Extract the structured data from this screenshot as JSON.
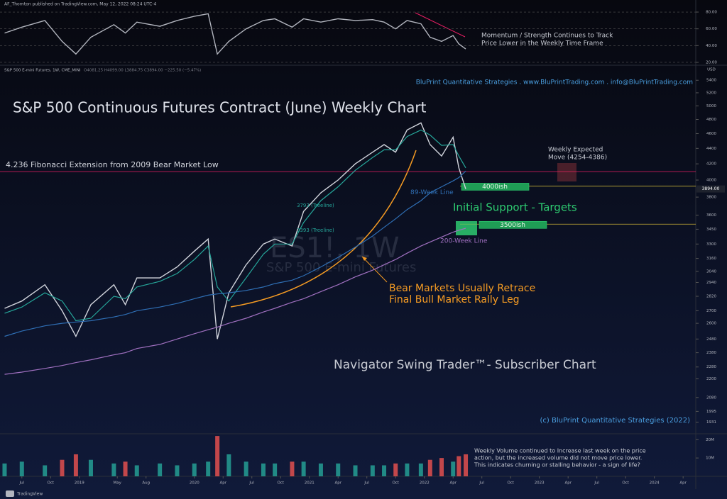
{
  "header": {
    "byline": "AF_Thornton published on TradingView.com, May 12, 2022 08:24 UTC-4",
    "symbol": "S&P 500 E-mini Futures, 1W, CME_MINI",
    "ohlc": "O4081.25 H4099.00 L3884.75 C3894.00 −225.50 (−5.47%)",
    "brand": "TradingView",
    "watermark": "ES1!, 1W",
    "watermark_sub": "S&P 500 E-mini Futures"
  },
  "chart_data": [
    {
      "type": "line",
      "panel": "momentum",
      "x": [
        2018.35,
        2018.5,
        2018.7,
        2018.85,
        2018.97,
        2019.1,
        2019.3,
        2019.4,
        2019.5,
        2019.7,
        2019.85,
        2020.0,
        2020.12,
        2020.2,
        2020.3,
        2020.45,
        2020.6,
        2020.7,
        2020.85,
        2020.95,
        2021.1,
        2021.25,
        2021.4,
        2021.55,
        2021.65,
        2021.75,
        2021.85,
        2021.97,
        2022.05,
        2022.15,
        2022.25,
        2022.3,
        2022.36
      ],
      "xlim": [
        2018.31,
        2024.36
      ],
      "ylim": [
        16.6,
        94.4
      ],
      "yticks": [
        {
          "value": 80,
          "label": "80.00"
        },
        {
          "value": 60,
          "label": "60.00"
        },
        {
          "value": 40,
          "label": "40.00"
        },
        {
          "value": 20,
          "label": "20.00"
        }
      ],
      "grid": true,
      "series": [
        {
          "color": "#b2b5be",
          "values": [
            55,
            62,
            70,
            45,
            30,
            50,
            65,
            55,
            68,
            63,
            70,
            75,
            78,
            30,
            45,
            60,
            70,
            72,
            62,
            72,
            68,
            72,
            70,
            71,
            68,
            60,
            70,
            66,
            50,
            45,
            52,
            42,
            36
          ]
        }
      ],
      "annotation_lines": [
        "Momentum / Strength Continues to Track",
        "Price Lower in the Weekly Time Frame"
      ]
    },
    {
      "type": "line",
      "panel": "price",
      "log": true,
      "ylabel": "USD",
      "x": [
        2018.35,
        2018.5,
        2018.7,
        2018.85,
        2018.97,
        2019.1,
        2019.3,
        2019.4,
        2019.5,
        2019.7,
        2019.85,
        2020.0,
        2020.12,
        2020.2,
        2020.3,
        2020.45,
        2020.6,
        2020.7,
        2020.85,
        2020.95,
        2021.1,
        2021.25,
        2021.4,
        2021.55,
        2021.65,
        2021.75,
        2021.85,
        2021.97,
        2022.05,
        2022.15,
        2022.25,
        2022.3,
        2022.36
      ],
      "xlim": [
        2018.31,
        2024.36
      ],
      "ylim": [
        1865,
        5650
      ],
      "xticks": [
        {
          "value": 2018.5,
          "label": "Jul"
        },
        {
          "value": 2018.75,
          "label": "Oct"
        },
        2019,
        {
          "value": 2019.33,
          "label": "May"
        },
        {
          "value": 2019.58,
          "label": "Aug"
        },
        2020,
        {
          "value": 2020.25,
          "label": "Apr"
        },
        {
          "value": 2020.5,
          "label": "Jul"
        },
        {
          "value": 2020.75,
          "label": "Oct"
        },
        2021,
        {
          "value": 2021.25,
          "label": "Apr"
        },
        {
          "value": 2021.5,
          "label": "Jul"
        },
        {
          "value": 2021.75,
          "label": "Oct"
        },
        2022,
        {
          "value": 2022.25,
          "label": "Apr"
        },
        {
          "value": 2022.5,
          "label": "Jul"
        },
        {
          "value": 2022.75,
          "label": "Oct"
        },
        2023,
        {
          "value": 2023.25,
          "label": "Apr"
        },
        {
          "value": 2023.5,
          "label": "Jul"
        },
        {
          "value": 2023.75,
          "label": "Oct"
        },
        2024,
        {
          "value": 2024.25,
          "label": "Apr"
        }
      ],
      "yticks": [
        5400,
        5200,
        5000,
        4800,
        4600,
        4400,
        4200,
        4000,
        3800,
        3600,
        3450,
        3300,
        3160,
        3040,
        2940,
        2820,
        2700,
        2600,
        2480,
        2380,
        2280,
        2200,
        2080,
        1995,
        1931
      ],
      "series": [
        {
          "color": "#d1d4dc",
          "values": [
            2720,
            2780,
            2920,
            2700,
            2500,
            2750,
            2920,
            2750,
            2980,
            2980,
            3080,
            3230,
            3350,
            2480,
            2850,
            3100,
            3300,
            3350,
            3280,
            3640,
            3850,
            4000,
            4200,
            4350,
            4450,
            4350,
            4650,
            4750,
            4450,
            4300,
            4550,
            4150,
            3894
          ]
        },
        {
          "color": "#26a69a",
          "values": [
            2680,
            2730,
            2850,
            2780,
            2620,
            2640,
            2820,
            2800,
            2900,
            2950,
            3020,
            3150,
            3280,
            2900,
            2780,
            2980,
            3200,
            3300,
            3300,
            3520,
            3760,
            3920,
            4120,
            4280,
            4380,
            4380,
            4560,
            4650,
            4580,
            4440,
            4450,
            4300,
            4150
          ]
        },
        {
          "color": "#2f6fb5",
          "label": "89-Week Line",
          "values": [
            2500,
            2540,
            2580,
            2600,
            2610,
            2620,
            2650,
            2670,
            2700,
            2730,
            2760,
            2800,
            2830,
            2840,
            2850,
            2870,
            2900,
            2930,
            2960,
            3000,
            3080,
            3170,
            3270,
            3380,
            3470,
            3560,
            3660,
            3760,
            3850,
            3920,
            3990,
            4030,
            4110
          ]
        },
        {
          "color": "#a070c0",
          "label": "200-Week Line",
          "values": [
            2230,
            2245,
            2270,
            2290,
            2310,
            2330,
            2365,
            2380,
            2410,
            2440,
            2480,
            2520,
            2550,
            2570,
            2600,
            2640,
            2690,
            2720,
            2770,
            2800,
            2860,
            2920,
            2990,
            3050,
            3100,
            3150,
            3210,
            3280,
            3320,
            3370,
            3420,
            3440,
            3460
          ]
        }
      ],
      "fib": {
        "value": 4103,
        "label": "4.236 Fibonacci Extension from 2009 Bear Market Low"
      },
      "levels": [
        {
          "value": 3929,
          "label": "4000ish"
        },
        {
          "value": 3503,
          "label": "3500ish"
        }
      ],
      "last_price": {
        "value": 3894,
        "label": "3894.00"
      },
      "annotations": [
        "S&P 500 Continuous Futures Contract (June) Weekly Chart",
        "BluPrint Quantitative Strategies . www.BluPrintTrading.com . info@BluPrintTrading.com",
        "Initial Support - Targets",
        "Bear Markets Usually Retrace",
        "Final Bull Market Rally Leg",
        "Navigator Swing Trader™- Subscriber Chart",
        "(c) BluPrint Quantitative Strategies (2022)",
        "Weekly Expected",
        "Move (4254-4386)",
        "3793 (Treeline)",
        "3393 (Treeline)"
      ]
    },
    {
      "type": "bar",
      "panel": "volume",
      "x": [
        2018.35,
        2018.5,
        2018.7,
        2018.85,
        2018.97,
        2019.1,
        2019.3,
        2019.4,
        2019.5,
        2019.7,
        2019.85,
        2020.0,
        2020.12,
        2020.2,
        2020.3,
        2020.45,
        2020.6,
        2020.7,
        2020.85,
        2020.95,
        2021.1,
        2021.25,
        2021.4,
        2021.55,
        2021.65,
        2021.75,
        2021.85,
        2021.97,
        2022.05,
        2022.15,
        2022.25,
        2022.3,
        2022.36
      ],
      "xlim": [
        2018.31,
        2024.36
      ],
      "ylim": [
        0,
        23200000
      ],
      "yticks": [
        {
          "value": 20000000,
          "label": "20M"
        },
        {
          "value": 10000000,
          "label": "10M"
        }
      ],
      "up_color": "#26a69a",
      "down_color": "#ef5350",
      "values": [
        7000000,
        8000000,
        6000000,
        9000000,
        12000000,
        9000000,
        7000000,
        8000000,
        6000000,
        7000000,
        6000000,
        7000000,
        8000000,
        22000000,
        12000000,
        8000000,
        7000000,
        7000000,
        8000000,
        8000000,
        7000000,
        7000000,
        6000000,
        6000000,
        6000000,
        7000000,
        7000000,
        7000000,
        9000000,
        10000000,
        8000000,
        11000000,
        12000000
      ],
      "annotation_lines": [
        "Weekly Volume continued to Increase last week on the price",
        "action, but the increased volume did not move price lower.",
        "This indicates churning or stalling behavior - a sign of life?"
      ]
    }
  ]
}
